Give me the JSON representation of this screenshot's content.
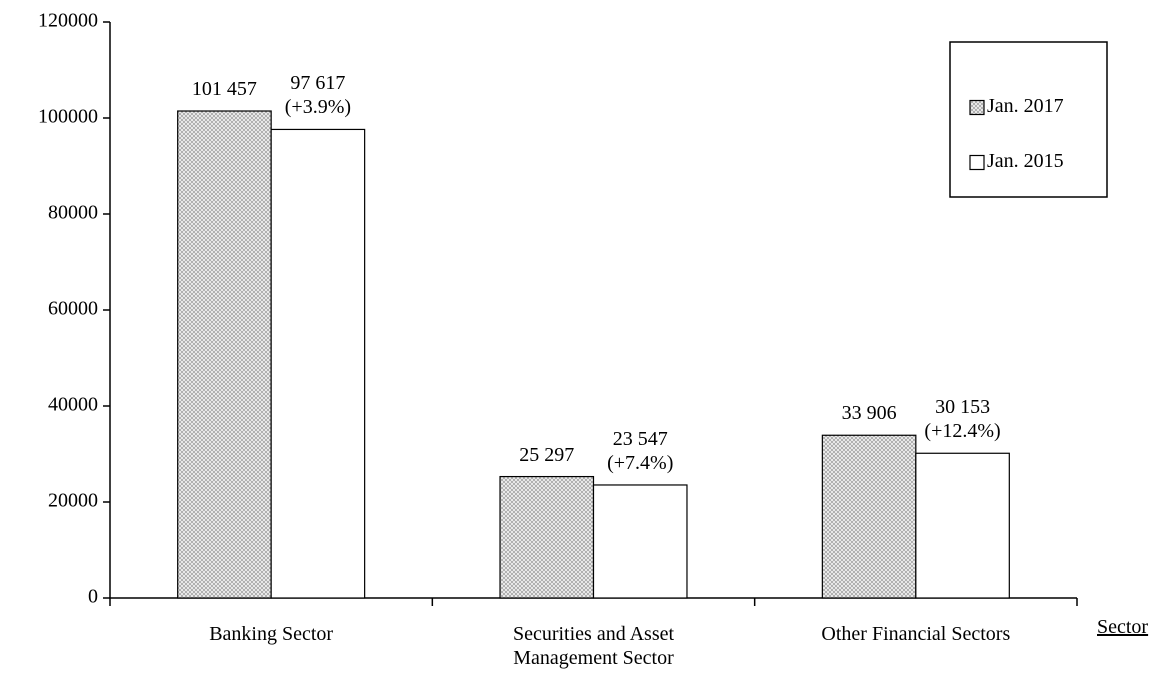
{
  "chart_data": {
    "type": "bar",
    "x_label": "Sector",
    "categories": [
      "Banking Sector",
      "Securities and Asset Management Sector",
      "Other Financial Sectors"
    ],
    "series": [
      {
        "name": "Jan. 2017",
        "color": "#a6a6a6",
        "pattern": "crosshatch",
        "values": [
          101457,
          25297,
          33906
        ],
        "value_labels": [
          "101 457",
          "25 297",
          "33 906"
        ]
      },
      {
        "name": "Jan. 2015",
        "color": "#ffffff",
        "values": [
          97617,
          23547,
          30153
        ],
        "value_labels": [
          "97 617 (+3.9%)",
          "23 547 (+7.4%)",
          "30 153 (+12.4%)"
        ]
      }
    ],
    "ylim": [
      0,
      120000
    ],
    "yticks": [
      0,
      20000,
      40000,
      60000,
      80000,
      100000,
      120000
    ],
    "grid": false,
    "legend": "upper right"
  }
}
